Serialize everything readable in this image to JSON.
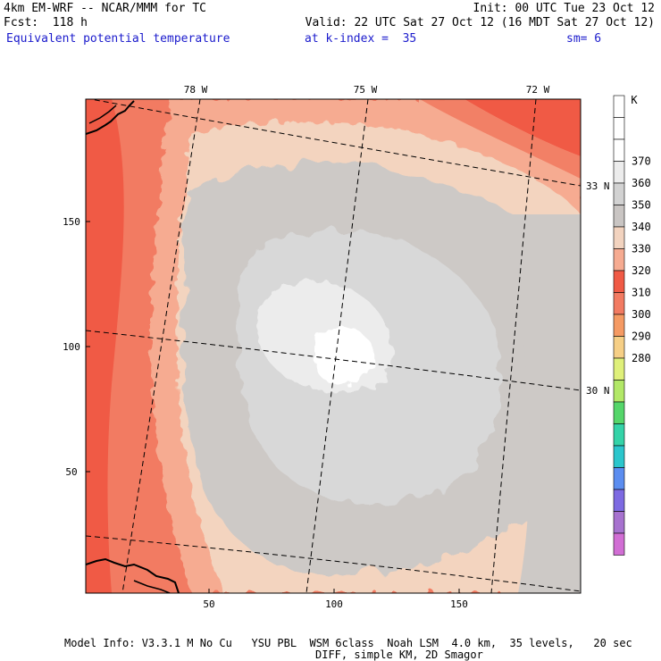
{
  "header": {
    "model_title": "4km EM-WRF -- NCAR/MMM for TC",
    "init": "Init: 00 UTC Tue 23 Oct 12",
    "forecast": "Fcst:  118 h",
    "valid": "Valid: 22 UTC Sat 27 Oct 12 (16 MDT Sat 27 Oct 12)",
    "field": "Equivalent potential temperature",
    "level": "at k-index =  35",
    "smoothing": "sm= 6"
  },
  "map": {
    "lon_labels": [
      "78 W",
      "75 W",
      "72 W"
    ],
    "lat_labels": [
      "33 N",
      "30 N"
    ],
    "y_ticks": [
      "150",
      "100",
      "50"
    ],
    "x_ticks": [
      "50",
      "100",
      "150"
    ],
    "colors": {
      "c320": "#f6cf86",
      "c330": "#f59a63",
      "c340": "#f05a45",
      "c345": "#f27b62",
      "c350": "#f6ab91",
      "c355": "#f3d4bf",
      "c360": "#cdc9c6",
      "c365": "#d8d8d8",
      "c370": "#ececec",
      "c375": "#ffffff"
    }
  },
  "colorbar": {
    "unit": "K",
    "labels": [
      "370",
      "360",
      "350",
      "340",
      "330",
      "320",
      "310",
      "300",
      "290",
      "280"
    ],
    "colors": [
      "#ffffff",
      "#ffffff",
      "#ffffff",
      "#ececec",
      "#d2d2d2",
      "#c9c5c3",
      "#f2d3bf",
      "#f6ab91",
      "#f05a45",
      "#f27b62",
      "#f59a63",
      "#f6cf86",
      "#dff07a",
      "#b2e867",
      "#55d66a",
      "#34d3a8",
      "#2bc6cc",
      "#5b8df0",
      "#7d6ae2",
      "#a772cf",
      "#d16ed4"
    ]
  },
  "footer": {
    "line1": "Model Info: V3.3.1 M No Cu   YSU PBL  WSM 6class  Noah LSM  4.0 km,  35 levels,   20 sec",
    "line2": "DIFF, simple KM, 2D Smagor"
  }
}
